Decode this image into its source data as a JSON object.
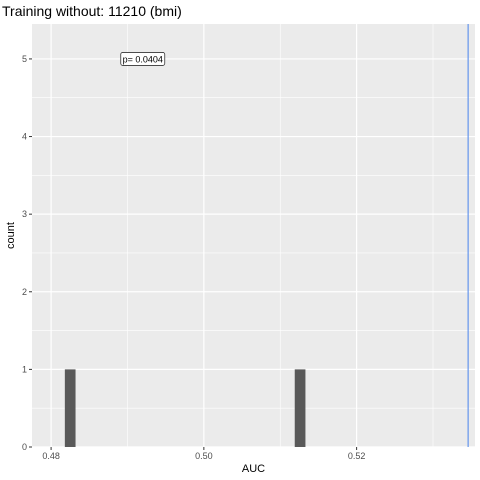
{
  "chart_data": {
    "type": "bar",
    "title": "Training without: 11210 (bmi)",
    "xlabel": "AUC",
    "ylabel": "count",
    "xlim": [
      0.4775,
      0.5355
    ],
    "ylim": [
      0,
      5.45
    ],
    "x_ticks": [
      0.48,
      0.5,
      0.52
    ],
    "x_tick_labels": [
      "0.48",
      "0.50",
      "0.52"
    ],
    "y_ticks": [
      0,
      1,
      2,
      3,
      4,
      5
    ],
    "y_tick_labels": [
      "0",
      "1",
      "2",
      "3",
      "4",
      "5"
    ],
    "bin_width": 0.0014,
    "bars": [
      {
        "x": 0.4825,
        "count": 1
      },
      {
        "x": 0.5126,
        "count": 1
      }
    ],
    "vline": {
      "x": 0.5346,
      "color": "#6495ED"
    },
    "annotation": {
      "text": "p= 0.0404",
      "x": 0.492,
      "y": 5.0
    },
    "grid": true,
    "colors": {
      "panel_bg": "#EBEBEB",
      "grid_major": "#FFFFFF",
      "bar_fill": "#595959",
      "annot_border": "#333333"
    }
  }
}
